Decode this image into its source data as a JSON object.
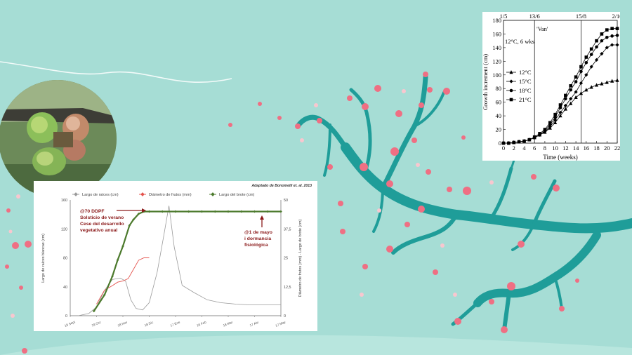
{
  "colors": {
    "background": "#a6ddd5",
    "branch": "#1f9d99",
    "blossom": "#ef6f83",
    "roots": "#9a9a9a",
    "fruit": "#e4534d",
    "shoot": "#4c7a2d",
    "annotation": "#8b1a1a"
  },
  "decorations": {
    "bud_photo": "cherry-bud-photo",
    "branch_art": "cherry-blossom-branch"
  },
  "chart_data": [
    {
      "type": "line",
      "attribution": "Adaptado de Bonomelli et. al. 2013",
      "legend_position": "top",
      "x": [
        "19 Sept",
        "19 Oct",
        "18 Nov",
        "18 Dic",
        "17 Ene",
        "16 Feb",
        "18 Mar",
        "17 Abr",
        "17 May"
      ],
      "ylabel": "Largo de raíces blancas (cm)",
      "ylabel_right": "Diámetro de frutos (mm) - Largo de brote (cm)",
      "ylim": [
        0,
        160
      ],
      "ylim_right": [
        0,
        50
      ],
      "yticks": [
        "0",
        "40",
        "80",
        "120",
        "160"
      ],
      "yticks_right": [
        "0",
        "12,5",
        "25",
        "37,5",
        "50"
      ],
      "grid": false,
      "series": [
        {
          "name": "Largo de raíces (cm)",
          "axis": "left",
          "color": "#9a9a9a",
          "points": [
            [
              0.3,
              0
            ],
            [
              0.7,
              3
            ],
            [
              1.0,
              12
            ],
            [
              1.3,
              35
            ],
            [
              1.6,
              50
            ],
            [
              1.9,
              52
            ],
            [
              2.1,
              48
            ],
            [
              2.3,
              22
            ],
            [
              2.5,
              10
            ],
            [
              2.75,
              8
            ],
            [
              3.0,
              18
            ],
            [
              3.3,
              60
            ],
            [
              3.55,
              110
            ],
            [
              3.75,
              152
            ],
            [
              3.95,
              95
            ],
            [
              4.25,
              42
            ],
            [
              4.7,
              32
            ],
            [
              5.2,
              22
            ],
            [
              5.7,
              18
            ],
            [
              6.3,
              16
            ],
            [
              6.8,
              15
            ],
            [
              7.5,
              15
            ],
            [
              8.0,
              15
            ]
          ]
        },
        {
          "name": "Diámetro de frutos (mm)",
          "axis": "right",
          "color": "#e4534d",
          "points": [
            [
              1.0,
              5
            ],
            [
              1.3,
              11
            ],
            [
              1.6,
              13
            ],
            [
              1.8,
              14.5
            ],
            [
              2.0,
              15
            ],
            [
              2.2,
              16
            ],
            [
              2.4,
              20
            ],
            [
              2.6,
              24
            ],
            [
              2.8,
              25
            ],
            [
              3.0,
              25
            ]
          ]
        },
        {
          "name": "Largo del brote (cm)",
          "axis": "right",
          "color": "#4c7a2d",
          "points": [
            [
              0.9,
              2
            ],
            [
              1.3,
              9
            ],
            [
              1.6,
              17
            ],
            [
              1.8,
              24
            ],
            [
              2.0,
              30
            ],
            [
              2.25,
              39
            ],
            [
              2.4,
              41.5
            ],
            [
              2.6,
              44
            ],
            [
              2.8,
              45
            ],
            [
              3.0,
              45
            ],
            [
              3.5,
              45
            ],
            [
              4.0,
              45
            ],
            [
              4.5,
              45
            ],
            [
              5.0,
              45
            ],
            [
              5.5,
              45
            ],
            [
              6.0,
              45
            ],
            [
              6.5,
              45
            ],
            [
              7.0,
              45
            ],
            [
              7.5,
              45
            ],
            [
              8.0,
              45
            ]
          ]
        }
      ],
      "annotations": [
        {
          "lines": [
            "@70 DDPF",
            "Solsticio de verano",
            "Cese del desarrollo",
            "vegetativo anual"
          ]
        },
        {
          "lines": [
            "@1 de mayo",
            "i dormancia",
            "fisiológica"
          ]
        }
      ]
    },
    {
      "type": "line",
      "title": "'Van'",
      "inset_label": "12°C, 6 wks",
      "xlabel": "Time (weeks)",
      "ylabel": "Growth increment (cm)",
      "xlim": [
        0,
        22
      ],
      "ylim": [
        0,
        180
      ],
      "xticks": [
        0,
        2,
        4,
        6,
        8,
        10,
        12,
        14,
        16,
        18,
        20,
        22
      ],
      "yticks": [
        0,
        20,
        40,
        60,
        80,
        100,
        120,
        140,
        160,
        180
      ],
      "date_markers": [
        {
          "label": "1/5",
          "week": 0
        },
        {
          "label": "13/6",
          "week": 6
        },
        {
          "label": "15/8",
          "week": 15
        },
        {
          "label": "2/10",
          "week": 22
        }
      ],
      "legend_position": "center-left",
      "series": [
        {
          "name": "12°C",
          "marker": "triangle",
          "x": [
            0,
            1,
            2,
            3,
            4,
            5,
            6,
            7,
            8,
            9,
            10,
            11,
            12,
            13,
            14,
            15,
            16,
            17,
            18,
            19,
            20,
            21,
            22
          ],
          "y": [
            0,
            0,
            1,
            2,
            3,
            5,
            8,
            12,
            16,
            22,
            30,
            40,
            50,
            58,
            67,
            73,
            78,
            82,
            85,
            87,
            89,
            91,
            92
          ]
        },
        {
          "name": "15°C",
          "marker": "diamond",
          "x": [
            0,
            1,
            2,
            3,
            4,
            5,
            6,
            7,
            8,
            9,
            10,
            11,
            12,
            13,
            14,
            15,
            16,
            17,
            18,
            19,
            20,
            21,
            22
          ],
          "y": [
            0,
            0,
            1,
            2,
            3,
            5,
            8,
            12,
            17,
            24,
            34,
            45,
            55,
            65,
            75,
            88,
            100,
            112,
            122,
            131,
            140,
            144,
            144
          ]
        },
        {
          "name": "18°C",
          "marker": "circle",
          "x": [
            0,
            1,
            2,
            3,
            4,
            5,
            6,
            7,
            8,
            9,
            10,
            11,
            12,
            13,
            14,
            15,
            16,
            17,
            18,
            19,
            20,
            21,
            22
          ],
          "y": [
            0,
            0,
            1,
            2,
            3,
            5,
            8,
            12,
            18,
            27,
            38,
            52,
            65,
            78,
            90,
            105,
            118,
            130,
            141,
            150,
            155,
            157,
            158
          ]
        },
        {
          "name": "21°C",
          "marker": "square",
          "x": [
            0,
            1,
            2,
            3,
            4,
            5,
            6,
            7,
            8,
            9,
            10,
            11,
            12,
            13,
            14,
            15,
            16,
            17,
            18,
            19,
            20,
            21,
            22
          ],
          "y": [
            0,
            0,
            1,
            2,
            3,
            5,
            9,
            14,
            20,
            30,
            42,
            56,
            70,
            84,
            97,
            112,
            126,
            138,
            150,
            160,
            166,
            168,
            168
          ]
        }
      ]
    }
  ]
}
